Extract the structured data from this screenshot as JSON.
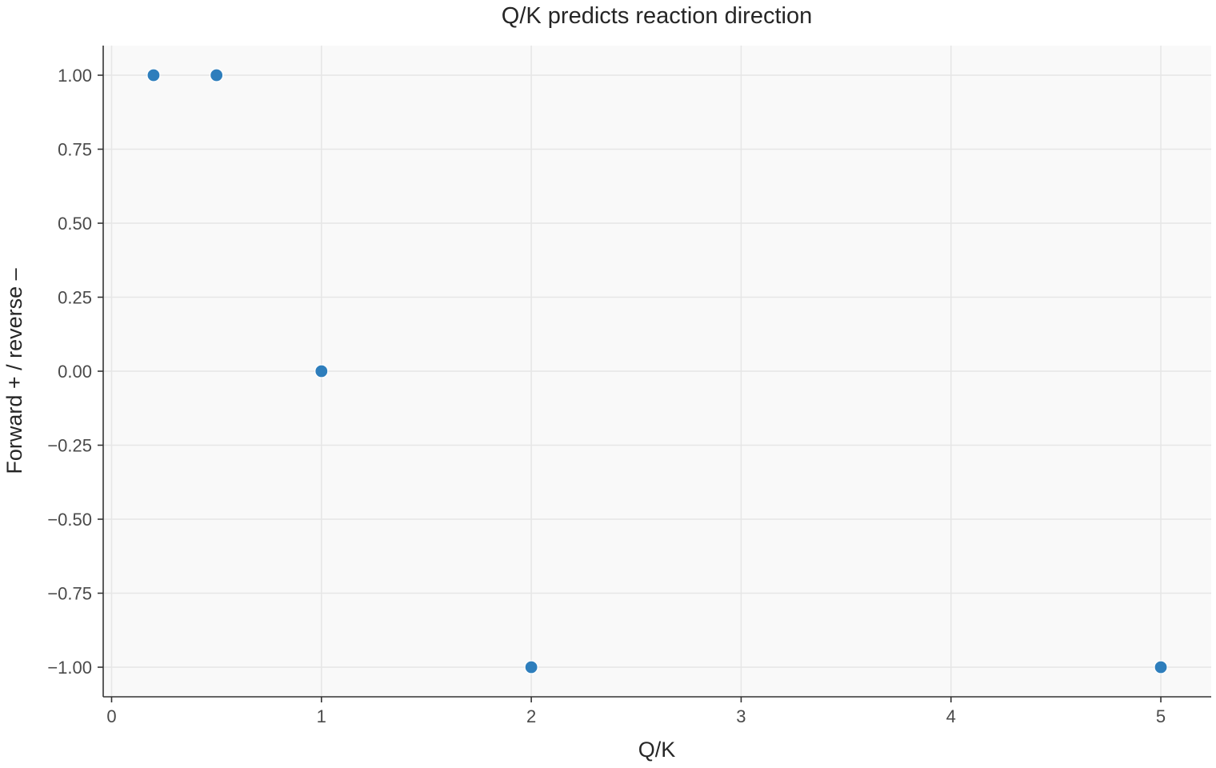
{
  "chart_data": {
    "type": "scatter",
    "title": "Q/K predicts reaction direction",
    "xlabel": "Q/K",
    "ylabel": "Forward + / reverse –",
    "xlim": [
      -0.04,
      5.24
    ],
    "ylim": [
      -1.1,
      1.1
    ],
    "x_ticks": [
      0,
      1,
      2,
      3,
      4,
      5
    ],
    "x_tick_labels": [
      "0",
      "1",
      "2",
      "3",
      "4",
      "5"
    ],
    "y_ticks": [
      1.0,
      0.75,
      0.5,
      0.25,
      0.0,
      -0.25,
      -0.5,
      -0.75,
      -1.0
    ],
    "y_tick_labels": [
      "1.00",
      "0.75",
      "0.50",
      "0.25",
      "0.00",
      "−0.25",
      "−0.50",
      "−0.75",
      "−1.00"
    ],
    "grid": true,
    "points": [
      {
        "x": 0.2,
        "y": 1
      },
      {
        "x": 0.5,
        "y": 1
      },
      {
        "x": 1,
        "y": 0
      },
      {
        "x": 2,
        "y": -1
      },
      {
        "x": 5,
        "y": -1
      }
    ],
    "colors": {
      "marker": "#2e7ebc",
      "plot_background": "#f9f9f9"
    }
  }
}
